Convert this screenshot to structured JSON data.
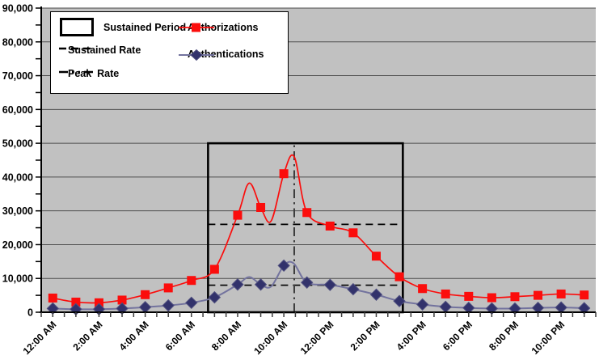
{
  "chart_data": {
    "type": "line",
    "title": "",
    "xlabel": "",
    "ylabel": "",
    "ylim": [
      0,
      90000
    ],
    "y_axis": {
      "tick_labels": [
        "0",
        "10,000",
        "20,000",
        "30,000",
        "40,000",
        "50,000",
        "60,000",
        "70,000",
        "80,000",
        "90,000"
      ],
      "major_step": 10000,
      "minor_step": 5000,
      "grid": "horizontal-only"
    },
    "x_axis": {
      "points_per_day": 24,
      "minor_tick_hours": 0.5,
      "tick_labels": [
        "12:00 AM",
        "2:00 AM",
        "4:00 AM",
        "6:00 AM",
        "8:00 AM",
        "10:00 AM",
        "12:00 PM",
        "2:00 PM",
        "4:00 PM",
        "6:00 PM",
        "8:00 PM",
        "10:00 PM"
      ],
      "label_rotation_deg": -45
    },
    "series": [
      {
        "name": "Authorizations",
        "marker": "square",
        "color": "#fb0d0c",
        "line_color": "#fb0d0c",
        "hours": [
          0,
          1,
          2,
          3,
          4,
          5,
          6,
          7,
          8,
          9,
          10,
          11,
          12,
          13,
          14,
          15,
          16,
          17,
          18,
          19,
          20,
          21,
          22,
          23
        ],
        "values": [
          4200,
          3000,
          2800,
          3600,
          5200,
          7200,
          9400,
          12700,
          28700,
          31000,
          41000,
          29500,
          25500,
          23500,
          16600,
          10500,
          7000,
          5400,
          4700,
          4300,
          4600,
          5000,
          5400,
          5100
        ],
        "curve_extra_points": [
          {
            "t": 8.5,
            "v": 38200
          },
          {
            "t": 9.45,
            "v": 27000
          },
          {
            "t": 10.45,
            "v": 46000
          }
        ]
      },
      {
        "name": "Authentications",
        "marker": "diamond",
        "color": "#32326b",
        "line_color": "#73739e",
        "hours": [
          0,
          1,
          2,
          3,
          4,
          5,
          6,
          7,
          8,
          9,
          10,
          11,
          12,
          13,
          14,
          15,
          16,
          17,
          18,
          19,
          20,
          21,
          22,
          23
        ],
        "values": [
          1100,
          900,
          900,
          1100,
          1500,
          2000,
          2800,
          4400,
          8200,
          8200,
          13800,
          8800,
          8100,
          6800,
          5200,
          3300,
          2300,
          1600,
          1300,
          1100,
          1100,
          1300,
          1400,
          1200
        ],
        "curve_extra_points": [
          {
            "t": 8.5,
            "v": 10400
          },
          {
            "t": 9.45,
            "v": 7600
          },
          {
            "t": 10.42,
            "v": 14500
          }
        ]
      }
    ],
    "annotations": {
      "sustained_period": {
        "label": "Sustained Period",
        "start_hour": 6.72,
        "end_hour": 15.15,
        "y_bottom": 0,
        "y_top": 50000
      },
      "sustained_rates": [
        {
          "series": "Authorizations",
          "value": 26000
        },
        {
          "series": "Authentications",
          "value": 8000
        }
      ],
      "peak_rate": {
        "label": "Peak Rate",
        "hour": 10.45,
        "y_bottom": 0,
        "y_top": 50000
      }
    },
    "colors": {
      "plot_background": "#c1c1c1",
      "gridline": "#4d4d4d",
      "axis": "#000000",
      "annotation": "#000000",
      "peak_line": "#3d3d3d"
    },
    "legend_position": "top-left-inside"
  },
  "legend": {
    "items": [
      {
        "label": "Sustained Period",
        "swatch": "rect-outline"
      },
      {
        "label": "Sustained Rate",
        "swatch": "dashed-line"
      },
      {
        "label": "Peak  Rate",
        "swatch": "dash-dot-line"
      },
      {
        "label": "Authorizations",
        "swatch": "red-line-square-marker"
      },
      {
        "label": "Authentications",
        "swatch": "blue-line-diamond-marker"
      }
    ]
  }
}
